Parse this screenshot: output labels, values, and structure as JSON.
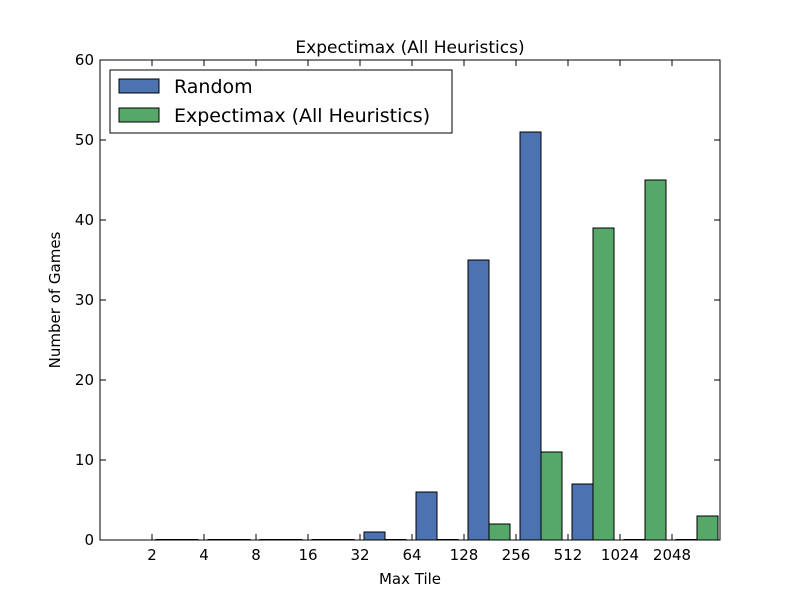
{
  "chart_data": {
    "type": "bar",
    "title": "Expectimax (All Heuristics)",
    "xlabel": "Max Tile",
    "ylabel": "Number of Games",
    "categories": [
      "2",
      "4",
      "8",
      "16",
      "32",
      "64",
      "128",
      "256",
      "512",
      "1024",
      "2048"
    ],
    "series": [
      {
        "name": "Random",
        "color": "#4c72b0",
        "values": [
          0,
          0,
          0,
          0,
          1,
          6,
          35,
          51,
          7,
          0,
          0
        ]
      },
      {
        "name": "Expectimax (All Heuristics)",
        "color": "#55a868",
        "values": [
          0,
          0,
          0,
          0,
          0,
          0,
          2,
          11,
          39,
          45,
          3
        ]
      }
    ],
    "ylim": [
      0,
      60
    ],
    "yticks": [
      0,
      10,
      20,
      30,
      40,
      50,
      60
    ],
    "grid": false,
    "legend": "top-left"
  }
}
